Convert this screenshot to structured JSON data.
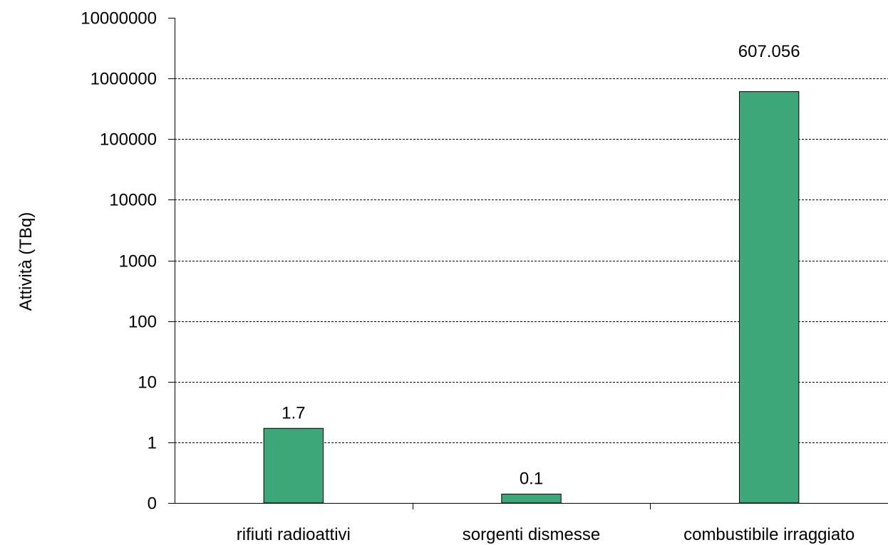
{
  "chart_data": {
    "type": "bar",
    "categories": [
      "rifiuti radioattivi",
      "sorgenti dismesse",
      "combustibile irraggiato"
    ],
    "values": [
      1.7,
      0.14,
      607056
    ],
    "data_labels": [
      "1.7",
      "0.1",
      "607.056"
    ],
    "ylabel": "Attività (TBq)",
    "yscale": "log",
    "ylim": [
      0.1,
      10000000
    ],
    "yticks": [
      {
        "value": 0.1,
        "label": "0"
      },
      {
        "value": 1,
        "label": "1"
      },
      {
        "value": 10,
        "label": "10"
      },
      {
        "value": 100,
        "label": "100"
      },
      {
        "value": 1000,
        "label": "1000"
      },
      {
        "value": 10000,
        "label": "10000"
      },
      {
        "value": 100000,
        "label": "100000"
      },
      {
        "value": 1000000,
        "label": "1000000"
      },
      {
        "value": 10000000,
        "label": "10000000"
      }
    ],
    "grid": true,
    "bar_color": "#3da77a",
    "bar_edge_color": "#000000"
  }
}
